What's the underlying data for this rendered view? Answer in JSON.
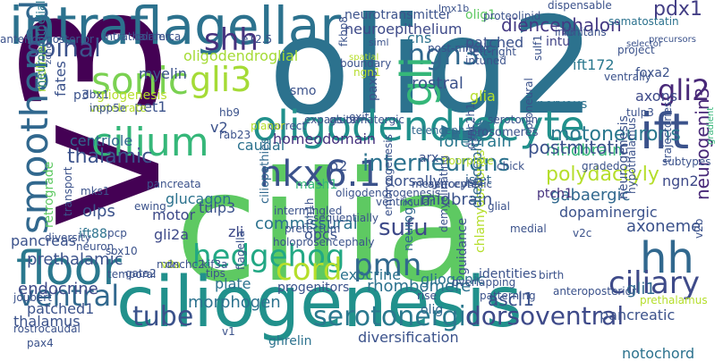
{
  "words": [
    {
      "text": "olig2",
      "color": "#2c728e"
    },
    {
      "text": "cilia",
      "color": "#5ec962"
    },
    {
      "text": "v3",
      "color": "#440154"
    },
    {
      "text": "ciliogenesis",
      "color": "#21918c"
    },
    {
      "text": "intraflagellar",
      "color": "#2c728e"
    },
    {
      "text": "oligodendrocyte",
      "color": "#21918c"
    },
    {
      "text": "smoothened",
      "color": "#31688e"
    },
    {
      "text": "cilium",
      "color": "#35b779"
    },
    {
      "text": "ift",
      "color": "#3b528b"
    },
    {
      "text": "nkx6.1",
      "color": "#3b528b"
    },
    {
      "text": "sonic",
      "color": "#7ad151"
    },
    {
      "text": "gli3",
      "color": "#a5db36"
    },
    {
      "text": "shh",
      "color": "#46327e"
    },
    {
      "text": "hedgehog",
      "color": "#22a884"
    },
    {
      "text": "floor",
      "color": "#2a788e"
    },
    {
      "text": "hh",
      "color": "#31688e"
    },
    {
      "text": "ciliary",
      "color": "#3e4a89"
    },
    {
      "text": "ventral",
      "color": "#31688e"
    },
    {
      "text": "tube",
      "color": "#3b528b"
    },
    {
      "text": "serotonergic",
      "color": "#2a788e"
    },
    {
      "text": "dorsoventral",
      "color": "#3e4a89"
    },
    {
      "text": "cord",
      "color": "#b5de2b"
    },
    {
      "text": "pmn",
      "color": "#31688e"
    },
    {
      "text": "ngn3",
      "color": "#31688e"
    },
    {
      "text": "gli2",
      "color": "#482878"
    },
    {
      "text": "gli",
      "color": "#35b779"
    },
    {
      "text": "spinal",
      "color": "#3b528b"
    },
    {
      "text": "motoneurons",
      "color": "#2a788e"
    },
    {
      "text": "interneurons",
      "color": "#2c728e"
    },
    {
      "text": "sufu",
      "color": "#3e4a89"
    },
    {
      "text": "neurogenin3",
      "color": "#482878"
    },
    {
      "text": "pdx1",
      "color": "#433e85"
    },
    {
      "text": "diencephalon",
      "color": "#443983"
    },
    {
      "text": "olig1",
      "color": "#5ec962"
    },
    {
      "text": "patched",
      "color": "#3b528b"
    },
    {
      "text": "intu",
      "color": "#414487"
    },
    {
      "text": "neuroepithelium",
      "color": "#3e4a89"
    },
    {
      "text": "neurotransmitter",
      "color": "#3b528b"
    },
    {
      "text": "somatostatin",
      "color": "#2c728e"
    },
    {
      "text": "ift172",
      "color": "#2a788e"
    },
    {
      "text": "myelin",
      "color": "#3b528b"
    },
    {
      "text": "cns",
      "color": "#2c728e"
    },
    {
      "text": "oligodendroglial",
      "color": "#a5db36"
    },
    {
      "text": "rostral",
      "color": "#3b528b"
    },
    {
      "text": "glia",
      "color": "#b5de2b"
    },
    {
      "text": "nervous",
      "color": "#2c728e"
    },
    {
      "text": "foxa2",
      "color": "#3b528b"
    },
    {
      "text": "axons",
      "color": "#3e4a89"
    },
    {
      "text": "forebrain",
      "color": "#2a788e"
    },
    {
      "text": "hindbrain",
      "color": "#35b779"
    },
    {
      "text": "ngn2",
      "color": "#3e4a89"
    },
    {
      "text": "caudal",
      "color": "#2c728e"
    },
    {
      "text": "homeodomain",
      "color": "#46327e"
    },
    {
      "text": "thalamic",
      "color": "#3b528b"
    },
    {
      "text": "centriole",
      "color": "#31688e"
    },
    {
      "text": "fates",
      "color": "#3b528b"
    },
    {
      "text": "midline",
      "color": "#a5db36"
    },
    {
      "text": "neuroepithelial",
      "color": "#2a788e"
    },
    {
      "text": "postmitotic",
      "color": "#3b528b"
    },
    {
      "text": "polydactyly",
      "color": "#b5de2b"
    },
    {
      "text": "gabaergic",
      "color": "#31688e"
    },
    {
      "text": "ptch1",
      "color": "#46327e"
    },
    {
      "text": "islet",
      "color": "#31688e"
    },
    {
      "text": "midbrain",
      "color": "#3b528b"
    },
    {
      "text": "dorsally",
      "color": "#3b528b"
    },
    {
      "text": "mash1",
      "color": "#35b779"
    },
    {
      "text": "glucagon",
      "color": "#2c728e"
    },
    {
      "text": "motor",
      "color": "#3e4a89"
    },
    {
      "text": "olps",
      "color": "#3b528b"
    },
    {
      "text": "ift88",
      "color": "#2c728e"
    },
    {
      "text": "gli2a",
      "color": "#3e4a89"
    },
    {
      "text": "tulp3",
      "color": "#3b528b"
    },
    {
      "text": "ciliopathies",
      "color": "#31688e"
    },
    {
      "text": "commissural",
      "color": "#2c728e"
    },
    {
      "text": "zli",
      "color": "#3e4a89"
    },
    {
      "text": "opcs",
      "color": "#3b528b"
    },
    {
      "text": "pancreas",
      "color": "#3b528b"
    },
    {
      "text": "prethalamic",
      "color": "#3b528b"
    },
    {
      "text": "endocrine",
      "color": "#3e4a89"
    },
    {
      "text": "patched1",
      "color": "#3b528b"
    },
    {
      "text": "thalamus",
      "color": "#3b528b"
    },
    {
      "text": "morphogen",
      "color": "#2c728e"
    },
    {
      "text": "plate",
      "color": "#2c728e"
    },
    {
      "text": "progenitors",
      "color": "#3b528b"
    },
    {
      "text": "rhombomere",
      "color": "#2c728e"
    },
    {
      "text": "exocrine",
      "color": "#2c728e"
    },
    {
      "text": "gliogenic",
      "color": "#2c728e"
    },
    {
      "text": "identities",
      "color": "#3b528b"
    },
    {
      "text": "ascl1",
      "color": "#3b528b"
    },
    {
      "text": "guidance",
      "color": "#3b528b"
    },
    {
      "text": "gli1",
      "color": "#31688e"
    },
    {
      "text": "pancreatic",
      "color": "#3b528b"
    },
    {
      "text": "notochord",
      "color": "#2c728e"
    },
    {
      "text": "axoneme",
      "color": "#3b528b"
    },
    {
      "text": "neurogenesis",
      "color": "#3b528b"
    },
    {
      "text": "dopaminergic",
      "color": "#3b528b"
    },
    {
      "text": "diversification",
      "color": "#3b528b"
    },
    {
      "text": "ghrelin",
      "color": "#2c728e"
    },
    {
      "text": "neurog3",
      "color": "#31688e"
    },
    {
      "text": "olig",
      "color": "#31688e"
    },
    {
      "text": "arx",
      "color": "#3b528b"
    },
    {
      "text": "p2",
      "color": "#3b528b"
    },
    {
      "text": "v2",
      "color": "#3b528b"
    },
    {
      "text": "pet1",
      "color": "#3b528b"
    },
    {
      "text": "p3",
      "color": "#3b528b"
    },
    {
      "text": "smo",
      "color": "#3b528b"
    },
    {
      "text": "pax6",
      "color": "#3b528b"
    },
    {
      "text": "gliogenesis",
      "color": "#b5de2b"
    },
    {
      "text": "vertebrate",
      "color": "#b5de2b"
    },
    {
      "text": "retrograde",
      "color": "#5ec962"
    },
    {
      "text": "chlamydomonas",
      "color": "#b5de2b"
    },
    {
      "text": "diencephalic",
      "color": "#31688e"
    },
    {
      "text": "telencephalon",
      "color": "#31688e"
    },
    {
      "text": "limitans",
      "color": "#3b528b"
    },
    {
      "text": "prosomeres",
      "color": "#3b528b"
    },
    {
      "text": "serotonin",
      "color": "#3b528b"
    },
    {
      "text": "subtypes",
      "color": "#3b528b"
    },
    {
      "text": "trajectories",
      "color": "#3b528b"
    },
    {
      "text": "gradient",
      "color": "#35b779"
    },
    {
      "text": "proneural",
      "color": "#3b528b"
    },
    {
      "text": "project",
      "color": "#3b528b"
    },
    {
      "text": "selector",
      "color": "#3b528b"
    },
    {
      "text": "precursors",
      "color": "#3b528b"
    },
    {
      "text": "dispensable",
      "color": "#3b528b"
    },
    {
      "text": "proteolipid",
      "color": "#3b528b"
    },
    {
      "text": "lmx1b",
      "color": "#3b528b"
    },
    {
      "text": "ventrally",
      "color": "#3b528b"
    },
    {
      "text": "tulp3",
      "color": "#3b528b"
    },
    {
      "text": "irx3",
      "color": "#3b528b"
    },
    {
      "text": "sulf1",
      "color": "#3b528b"
    },
    {
      "text": "left-right",
      "color": "#3b528b"
    },
    {
      "text": "intuned",
      "color": "#3b528b"
    },
    {
      "text": "post-mitotic",
      "color": "#3b528b"
    },
    {
      "text": "siml",
      "color": "#3b528b"
    },
    {
      "text": "spatial",
      "color": "#b5de2b"
    },
    {
      "text": "fkbp8",
      "color": "#3b528b"
    },
    {
      "text": "boundary",
      "color": "#3b528b"
    },
    {
      "text": "ngn1",
      "color": "#b5de2b"
    },
    {
      "text": "e12.5",
      "color": "#3b528b"
    },
    {
      "text": "border",
      "color": "#3b528b"
    },
    {
      "text": "intrathalamica",
      "color": "#3b528b"
    },
    {
      "text": "anterior-posterior",
      "color": "#3b528b"
    },
    {
      "text": "zone",
      "color": "#3b528b"
    },
    {
      "text": "dbx1",
      "color": "#3b528b"
    },
    {
      "text": "inpp5e",
      "color": "#3b528b"
    },
    {
      "text": "hb9",
      "color": "#3b528b"
    },
    {
      "text": "glutamatergic",
      "color": "#3b528b"
    },
    {
      "text": "expansion",
      "color": "#3b528b"
    },
    {
      "text": "exit",
      "color": "#3b528b"
    },
    {
      "text": "correct",
      "color": "#3b528b"
    },
    {
      "text": "planar",
      "color": "#b5de2b"
    },
    {
      "text": "rab23",
      "color": "#3b528b"
    },
    {
      "text": "floorplate",
      "color": "#b5de2b"
    },
    {
      "text": "graded",
      "color": "#3b528b"
    },
    {
      "text": "isl1",
      "color": "#3b528b"
    },
    {
      "text": "astrocyte",
      "color": "#3b528b"
    },
    {
      "text": "chick",
      "color": "#3b528b"
    },
    {
      "text": "glial",
      "color": "#3b528b"
    },
    {
      "text": "oligodendrogenesis",
      "color": "#3b528b"
    },
    {
      "text": "intermingled",
      "color": "#3b528b"
    },
    {
      "text": "sequentially",
      "color": "#3b528b"
    },
    {
      "text": "medial",
      "color": "#3b528b"
    },
    {
      "text": "v2c",
      "color": "#3b528b"
    },
    {
      "text": "holoprosencephaly",
      "color": "#3b528b"
    },
    {
      "text": "pretectum",
      "color": "#3b528b"
    },
    {
      "text": "dync2h1",
      "color": "#3b528b"
    },
    {
      "text": "embryogenesis",
      "color": "#3b528b"
    },
    {
      "text": "mesencephalic",
      "color": "#3b528b"
    },
    {
      "text": "demyelinating",
      "color": "#3b528b"
    },
    {
      "text": "hypothalamus",
      "color": "#3b528b"
    },
    {
      "text": "v2b",
      "color": "#3b528b"
    },
    {
      "text": "transport",
      "color": "#3b528b"
    },
    {
      "text": "pancreata",
      "color": "#3b528b"
    },
    {
      "text": "ewing",
      "color": "#3b528b"
    },
    {
      "text": "mks1",
      "color": "#3b528b"
    },
    {
      "text": "pcp",
      "color": "#3b528b"
    },
    {
      "text": "mns",
      "color": "#3b528b"
    },
    {
      "text": "diversity",
      "color": "#3b528b"
    },
    {
      "text": "neuron",
      "color": "#3b528b"
    },
    {
      "text": "sox10",
      "color": "#3b528b"
    },
    {
      "text": "v2a",
      "color": "#b5de2b"
    },
    {
      "text": "temporal",
      "color": "#3b528b"
    },
    {
      "text": "joubert",
      "color": "#3b528b"
    },
    {
      "text": "rostrocaudal",
      "color": "#3b528b"
    },
    {
      "text": "pax4",
      "color": "#3b528b"
    },
    {
      "text": "gata2",
      "color": "#3b528b"
    },
    {
      "text": "dnchc2",
      "color": "#3b528b"
    },
    {
      "text": "kif3a",
      "color": "#3b528b"
    },
    {
      "text": "tips",
      "color": "#3b528b"
    },
    {
      "text": "flagella",
      "color": "#3b528b"
    },
    {
      "text": "ventricular",
      "color": "#3b528b"
    },
    {
      "text": "bh1h",
      "color": "#3b528b"
    },
    {
      "text": "overlapping",
      "color": "#3b528b"
    },
    {
      "text": "rise",
      "color": "#3b528b"
    },
    {
      "text": "patterning",
      "color": "#3b528b"
    },
    {
      "text": "birth",
      "color": "#3b528b"
    },
    {
      "text": "anteroposterior",
      "color": "#3b528b"
    },
    {
      "text": "v1",
      "color": "#3b528b"
    },
    {
      "text": "prethalamus",
      "color": "#b5de2b"
    }
  ]
}
